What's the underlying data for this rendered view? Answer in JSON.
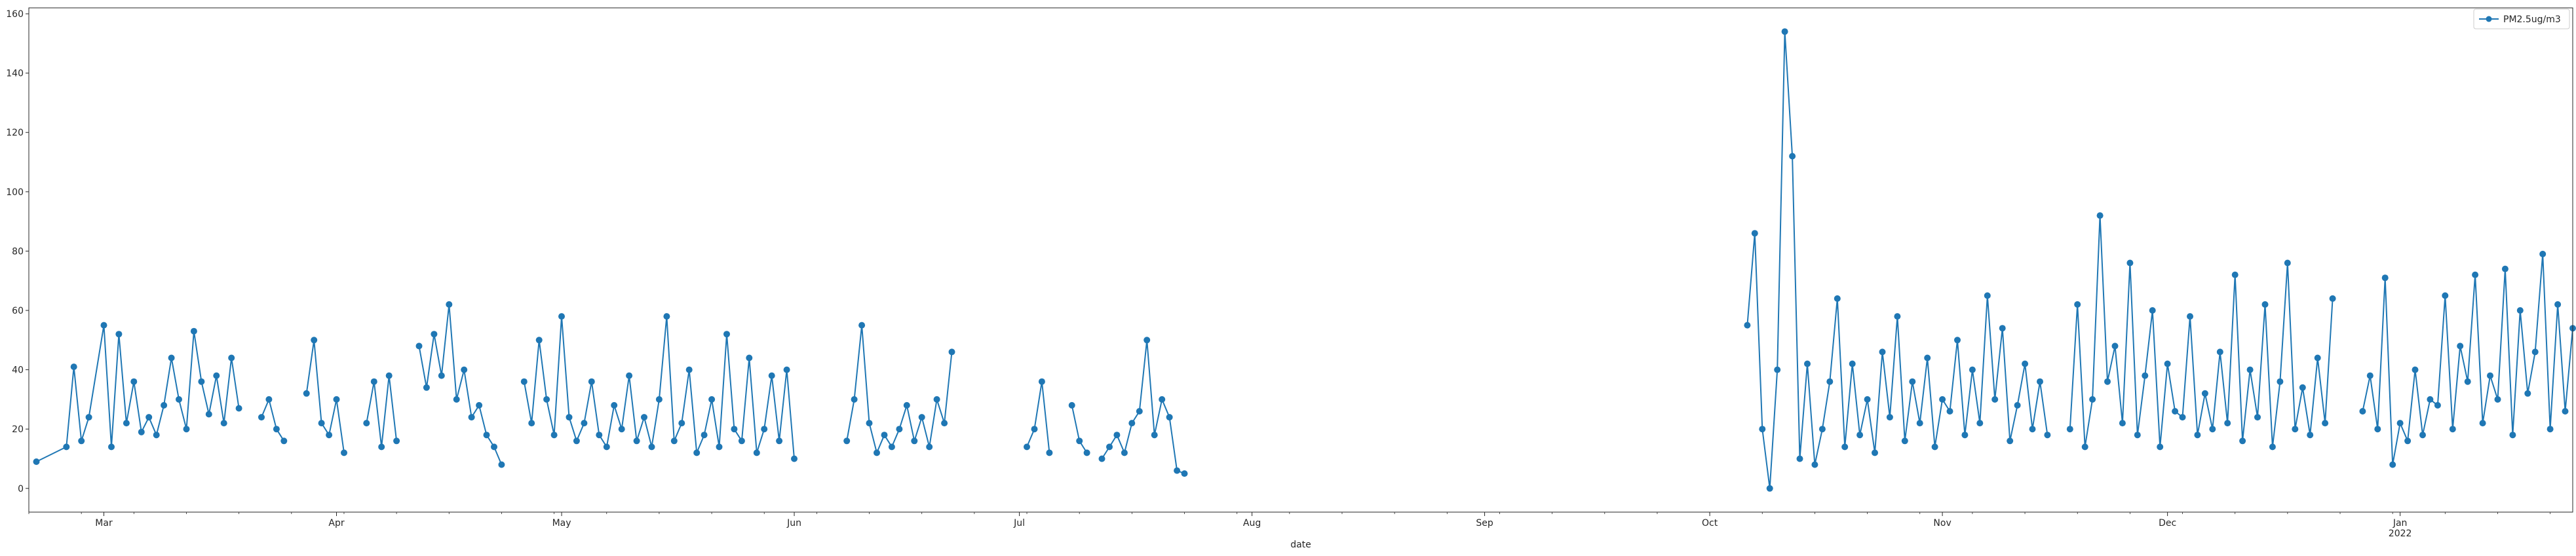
{
  "chart_data": {
    "type": "line",
    "xlabel": "date",
    "ylabel": "",
    "ylim": [
      -8,
      162
    ],
    "xlim": [
      "2021-02-19",
      "2022-01-24"
    ],
    "grid": false,
    "legend": {
      "position": "top-right",
      "entries": [
        "PM2.5ug/m3"
      ]
    },
    "x_ticks": [
      {
        "date": "2021-03-01",
        "label": "Mar"
      },
      {
        "date": "2021-04-01",
        "label": "Apr"
      },
      {
        "date": "2021-05-01",
        "label": "May"
      },
      {
        "date": "2021-06-01",
        "label": "Jun"
      },
      {
        "date": "2021-07-01",
        "label": "Jul"
      },
      {
        "date": "2021-08-01",
        "label": "Aug"
      },
      {
        "date": "2021-09-01",
        "label": "Sep"
      },
      {
        "date": "2021-10-01",
        "label": "Oct"
      },
      {
        "date": "2021-11-01",
        "label": "Nov"
      },
      {
        "date": "2021-12-01",
        "label": "Dec"
      },
      {
        "date": "2022-01-01",
        "label": "Jan",
        "sublabel": "2022"
      }
    ],
    "y_ticks": [
      0,
      20,
      40,
      60,
      80,
      100,
      120,
      140,
      160
    ],
    "series": [
      {
        "name": "PM2.5ug/m3",
        "color": "#1f77b4",
        "marker": "circle",
        "segments": [
          {
            "x": [
              "2021-02-20",
              "2021-02-24",
              "2021-02-25",
              "2021-02-26",
              "2021-02-27",
              "2021-03-01",
              "2021-03-02",
              "2021-03-03",
              "2021-03-04",
              "2021-03-05",
              "2021-03-06",
              "2021-03-07",
              "2021-03-08",
              "2021-03-09",
              "2021-03-10",
              "2021-03-11",
              "2021-03-12",
              "2021-03-13",
              "2021-03-14",
              "2021-03-15",
              "2021-03-16",
              "2021-03-17",
              "2021-03-18",
              "2021-03-19"
            ],
            "y": [
              9,
              14,
              41,
              16,
              24,
              55,
              14,
              52,
              22,
              36,
              19,
              24,
              18,
              28,
              44,
              30,
              20,
              53,
              36,
              25,
              38,
              22,
              44,
              27
            ]
          },
          {
            "x": [
              "2021-03-22",
              "2021-03-23",
              "2021-03-24",
              "2021-03-25"
            ],
            "y": [
              24,
              30,
              20,
              16
            ]
          },
          {
            "x": [
              "2021-03-28",
              "2021-03-29",
              "2021-03-30",
              "2021-03-31",
              "2021-04-01",
              "2021-04-02"
            ],
            "y": [
              32,
              50,
              22,
              18,
              30,
              12
            ]
          },
          {
            "x": [
              "2021-04-05",
              "2021-04-06",
              "2021-04-07",
              "2021-04-08",
              "2021-04-09"
            ],
            "y": [
              22,
              36,
              14,
              38,
              16
            ]
          },
          {
            "x": [
              "2021-04-12",
              "2021-04-13",
              "2021-04-14",
              "2021-04-15",
              "2021-04-16",
              "2021-04-17",
              "2021-04-18",
              "2021-04-19",
              "2021-04-20",
              "2021-04-21",
              "2021-04-22",
              "2021-04-23"
            ],
            "y": [
              48,
              34,
              52,
              38,
              62,
              30,
              40,
              24,
              28,
              18,
              14,
              8
            ]
          },
          {
            "x": [
              "2021-04-26",
              "2021-04-27",
              "2021-04-28",
              "2021-04-29",
              "2021-04-30",
              "2021-05-01",
              "2021-05-02",
              "2021-05-03",
              "2021-05-04",
              "2021-05-05",
              "2021-05-06",
              "2021-05-07",
              "2021-05-08",
              "2021-05-09",
              "2021-05-10",
              "2021-05-11",
              "2021-05-12",
              "2021-05-13",
              "2021-05-14",
              "2021-05-15",
              "2021-05-16",
              "2021-05-17",
              "2021-05-18",
              "2021-05-19",
              "2021-05-20",
              "2021-05-21",
              "2021-05-22",
              "2021-05-23",
              "2021-05-24",
              "2021-05-25",
              "2021-05-26",
              "2021-05-27",
              "2021-05-28",
              "2021-05-29",
              "2021-05-30",
              "2021-05-31",
              "2021-06-01"
            ],
            "y": [
              36,
              22,
              50,
              30,
              18,
              58,
              24,
              16,
              22,
              36,
              18,
              14,
              28,
              20,
              38,
              16,
              24,
              14,
              30,
              58,
              16,
              22,
              40,
              12,
              18,
              30,
              14,
              52,
              20,
              16,
              44,
              12,
              20,
              38,
              16,
              40,
              10
            ]
          },
          {
            "x": [
              "2021-06-08",
              "2021-06-09",
              "2021-06-10",
              "2021-06-11",
              "2021-06-12",
              "2021-06-13",
              "2021-06-14",
              "2021-06-15",
              "2021-06-16",
              "2021-06-17",
              "2021-06-18",
              "2021-06-19",
              "2021-06-20",
              "2021-06-21",
              "2021-06-22"
            ],
            "y": [
              16,
              30,
              55,
              22,
              12,
              18,
              14,
              20,
              28,
              16,
              24,
              14,
              30,
              22,
              46
            ]
          },
          {
            "x": [
              "2021-07-02",
              "2021-07-03",
              "2021-07-04",
              "2021-07-05"
            ],
            "y": [
              14,
              20,
              36,
              12
            ]
          },
          {
            "x": [
              "2021-07-08",
              "2021-07-09",
              "2021-07-10"
            ],
            "y": [
              28,
              16,
              12
            ]
          },
          {
            "x": [
              "2021-07-12",
              "2021-07-13",
              "2021-07-14",
              "2021-07-15",
              "2021-07-16",
              "2021-07-17",
              "2021-07-18",
              "2021-07-19",
              "2021-07-20",
              "2021-07-21",
              "2021-07-22",
              "2021-07-23"
            ],
            "y": [
              10,
              14,
              18,
              12,
              22,
              26,
              50,
              18,
              30,
              24,
              6,
              5
            ]
          },
          {
            "x": [
              "2021-10-06",
              "2021-10-07",
              "2021-10-08",
              "2021-10-09",
              "2021-10-10",
              "2021-10-11",
              "2021-10-12",
              "2021-10-13",
              "2021-10-14",
              "2021-10-15",
              "2021-10-16",
              "2021-10-17",
              "2021-10-18",
              "2021-10-19",
              "2021-10-20",
              "2021-10-21",
              "2021-10-22",
              "2021-10-23",
              "2021-10-24",
              "2021-10-25",
              "2021-10-26",
              "2021-10-27",
              "2021-10-28",
              "2021-10-29",
              "2021-10-30",
              "2021-10-31",
              "2021-11-01",
              "2021-11-02",
              "2021-11-03",
              "2021-11-04",
              "2021-11-05",
              "2021-11-06",
              "2021-11-07",
              "2021-11-08",
              "2021-11-09",
              "2021-11-10",
              "2021-11-11",
              "2021-11-12",
              "2021-11-13",
              "2021-11-14",
              "2021-11-15"
            ],
            "y": [
              55,
              86,
              20,
              0,
              40,
              154,
              112,
              10,
              42,
              8,
              20,
              36,
              64,
              14,
              42,
              18,
              30,
              12,
              46,
              24,
              58,
              16,
              36,
              22,
              44,
              14,
              30,
              26,
              50,
              18,
              40,
              22,
              65,
              30,
              54,
              16,
              28,
              42,
              20,
              36,
              18
            ]
          },
          {
            "x": [
              "2021-11-18",
              "2021-11-19",
              "2021-11-20",
              "2021-11-21",
              "2021-11-22",
              "2021-11-23",
              "2021-11-24",
              "2021-11-25",
              "2021-11-26",
              "2021-11-27",
              "2021-11-28",
              "2021-11-29",
              "2021-11-30",
              "2021-12-01",
              "2021-12-02",
              "2021-12-03",
              "2021-12-04",
              "2021-12-05",
              "2021-12-06",
              "2021-12-07",
              "2021-12-08",
              "2021-12-09",
              "2021-12-10",
              "2021-12-11",
              "2021-12-12",
              "2021-12-13",
              "2021-12-14",
              "2021-12-15",
              "2021-12-16",
              "2021-12-17",
              "2021-12-18",
              "2021-12-19",
              "2021-12-20",
              "2021-12-21",
              "2021-12-22",
              "2021-12-23"
            ],
            "y": [
              20,
              62,
              14,
              30,
              92,
              36,
              48,
              22,
              76,
              18,
              38,
              60,
              14,
              42,
              26,
              24,
              58,
              18,
              32,
              20,
              46,
              22,
              72,
              16,
              40,
              24,
              62,
              14,
              36,
              76,
              20,
              34,
              18,
              44,
              22,
              64
            ]
          },
          {
            "x": [
              "2021-12-27",
              "2021-12-28",
              "2021-12-29",
              "2021-12-30",
              "2021-12-31",
              "2022-01-01",
              "2022-01-02",
              "2022-01-03",
              "2022-01-04",
              "2022-01-05",
              "2022-01-06",
              "2022-01-07",
              "2022-01-08",
              "2022-01-09",
              "2022-01-10",
              "2022-01-11",
              "2022-01-12",
              "2022-01-13",
              "2022-01-14",
              "2022-01-15",
              "2022-01-16",
              "2022-01-17",
              "2022-01-18",
              "2022-01-19",
              "2022-01-20",
              "2022-01-21",
              "2022-01-22",
              "2022-01-23",
              "2022-01-24"
            ],
            "y": [
              26,
              38,
              20,
              71,
              8,
              22,
              16,
              40,
              18,
              30,
              28,
              65,
              20,
              48,
              36,
              72,
              22,
              38,
              30,
              74,
              18,
              60,
              32,
              46,
              79,
              20,
              62,
              26,
              54
            ]
          }
        ]
      }
    ]
  }
}
